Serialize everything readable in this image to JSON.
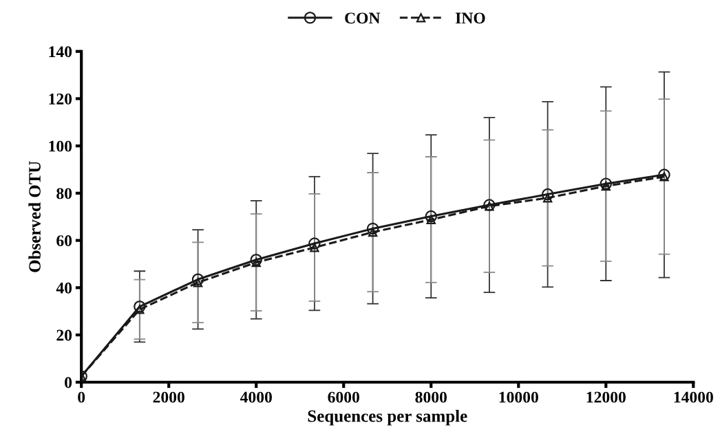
{
  "chart_data": {
    "type": "line",
    "xlabel": "Sequences per sample",
    "ylabel": "Observed OTU",
    "x": [
      0,
      1333,
      2667,
      4000,
      5333,
      6667,
      8000,
      9333,
      10667,
      12000,
      13333
    ],
    "series": [
      {
        "name": "CON",
        "color": "#1a1a1a",
        "marker": "circle",
        "line_style": "solid",
        "values": [
          2.5,
          32,
          43.5,
          51.8,
          58.7,
          65,
          70.2,
          75,
          79.5,
          84,
          87.8
        ],
        "errors": [
          null,
          15,
          21,
          25,
          28.3,
          31.8,
          34.5,
          37,
          39.2,
          41,
          43.5
        ]
      },
      {
        "name": "INO",
        "color": "#1a1a1a",
        "marker": "triangle",
        "line_style": "dashed",
        "values": [
          2.5,
          30.8,
          42.2,
          50.7,
          57,
          63.5,
          68.8,
          74.5,
          78,
          83,
          87
        ],
        "errors": [
          null,
          12.6,
          17,
          20.5,
          22.7,
          25.2,
          26.6,
          28,
          28.8,
          31.8,
          32.8
        ]
      }
    ],
    "xlim": [
      0,
      14000
    ],
    "xticks": [
      0,
      2000,
      4000,
      6000,
      8000,
      10000,
      12000,
      14000
    ],
    "ylim": [
      0,
      140
    ],
    "yticks": [
      0,
      20,
      40,
      60,
      80,
      100,
      120,
      140
    ],
    "grid": false,
    "legend": "top"
  }
}
